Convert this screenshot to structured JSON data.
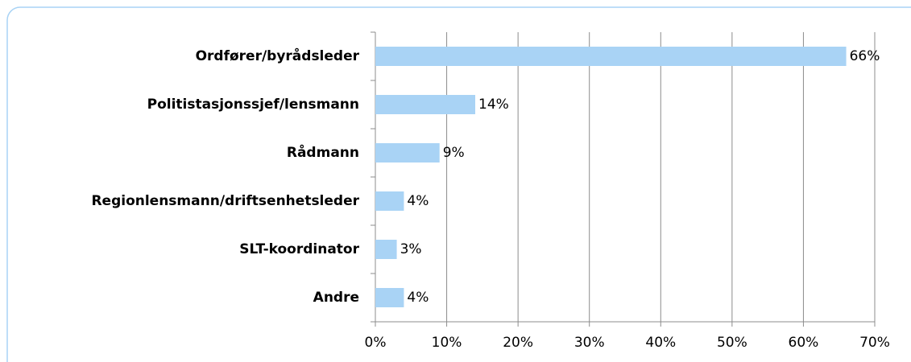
{
  "chart_data": {
    "type": "bar",
    "orientation": "horizontal",
    "categories": [
      "Ordfører/byrådsleder",
      "Politistasjonssjef/lensmann",
      "Rådmann",
      "Regionlensmann/driftsenhetsleder",
      "SLT-koordinator",
      "Andre"
    ],
    "values": [
      66,
      14,
      9,
      4,
      3,
      4
    ],
    "value_labels": [
      "66%",
      "14%",
      "9%",
      "4%",
      "3%",
      "4%"
    ],
    "color": "#a9d3f5",
    "xlim": [
      0,
      70
    ],
    "xticks": [
      {
        "value": 0,
        "label": "0%"
      },
      {
        "value": 10,
        "label": "10%"
      },
      {
        "value": 20,
        "label": "20%"
      },
      {
        "value": 30,
        "label": "30%"
      },
      {
        "value": 40,
        "label": "40%"
      },
      {
        "value": 50,
        "label": "50%"
      },
      {
        "value": 60,
        "label": "60%"
      },
      {
        "value": 70,
        "label": "70%"
      }
    ],
    "grid": true
  }
}
